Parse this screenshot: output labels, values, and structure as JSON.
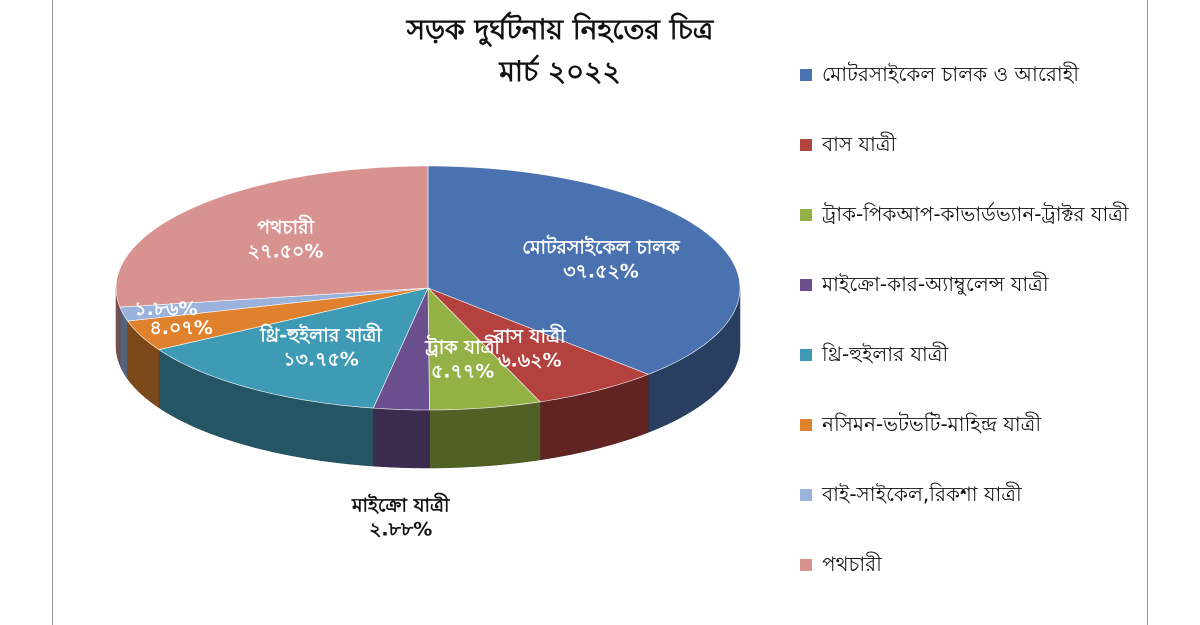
{
  "chart_data": {
    "type": "pie3d",
    "title": "সড়ক দুর্ঘটনায় নিহতের চিত্র",
    "subtitle": "মার্চ ২০২২",
    "categories": [
      "মোটরসাইকেল চালক ও আরোহী",
      "বাস যাত্রী",
      "ট্রাক-পিকআপ-কাভার্ডভ্যান-ট্রাক্টর যাত্রী",
      "মাইক্রো-কার-অ্যাম্বুলেন্স যাত্রী",
      "থ্রি-হুইলার যাত্রী",
      "নসিমন-ভটভটি-মাহিন্দ্র যাত্রী",
      "বাই-সাইকেল,রিকশা যাত্রী",
      "পথচারী"
    ],
    "slice_labels": [
      "মোটরসাইকেল চালক",
      "বাস যাত্রী",
      "ট্রাক যাত্রী",
      "মাইক্রো যাত্রী",
      "থ্রি-হুইলার যাত্রী",
      null,
      null,
      "পথচারী"
    ],
    "values": [
      37.52,
      6.62,
      5.77,
      2.88,
      13.75,
      4.07,
      1.86,
      27.5
    ],
    "value_labels": [
      "৩৭.৫২%",
      "৬.৬২%",
      "৫.৭৭%",
      "২.৮৮%",
      "১৩.৭৫%",
      "৪.০৭%",
      "১.৮৬%",
      "২৭.৫০%"
    ],
    "colors": [
      "#4a72b0",
      "#b3413e",
      "#93b145",
      "#6c4f8e",
      "#3f9bb5",
      "#e0822d",
      "#9bb2dd",
      "#d89391"
    ],
    "legend": "right"
  }
}
